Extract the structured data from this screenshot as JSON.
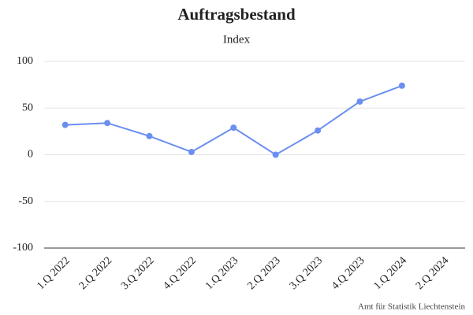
{
  "chart_data": {
    "type": "line",
    "title": "Auftragsbestand",
    "subtitle": "Index",
    "categories": [
      "1.Q 2022",
      "2.Q 2022",
      "3.Q 2022",
      "4.Q 2022",
      "1.Q 2023",
      "2.Q 2023",
      "3.Q 2023",
      "4.Q 2023",
      "1.Q 2024",
      "2.Q 2024"
    ],
    "series": [
      {
        "name": "Auftragsbestand",
        "color": "#6a8ff0",
        "values": [
          32,
          34,
          20,
          3,
          29,
          0,
          26,
          57,
          74,
          null
        ]
      }
    ],
    "ylim": [
      -100,
      100
    ],
    "yticks": [
      -100,
      -50,
      0,
      50,
      100
    ],
    "grid": true,
    "source": "Amt für Statistik Liechtenstein"
  }
}
